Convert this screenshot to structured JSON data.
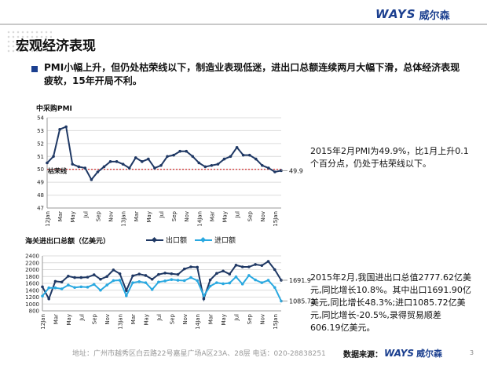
{
  "header": {
    "logo_text": "WAYS",
    "logo_cn": "威尔森"
  },
  "page": {
    "title": "宏观经济表现",
    "page_number": "3"
  },
  "summary": "PMI小幅上升，但仍处枯荣线以下，制造业表现低迷，进出口总额连续两月大幅下滑，总体经济表现疲软，15年开局不利。",
  "notes": {
    "pmi": "2015年2月PMI为49.9%，比1月上升0.1 个百分点，仍处于枯荣线以下。",
    "trade": "2015年2月,我国进出口总值2777.62亿美元,同比增长10.8%。其中出口1691.90亿美元,同比增长48.3%;进口1085.72亿美元,同比增长-20.5%,录得贸易顺差606.19亿美元。"
  },
  "footer": {
    "address": "地址：广州市越秀区白云路22号嘉星广场A区23A、28层   电话：020-28838251",
    "source_label": "数据来源：",
    "source_logo": "WAYS",
    "source_cn": "威尔森"
  },
  "chart_data": [
    {
      "type": "line",
      "title": "中采购PMI",
      "ylim": [
        47,
        54
      ],
      "yticks": [
        47,
        48,
        49,
        50,
        51,
        52,
        53,
        54
      ],
      "xticks": [
        "12Jan",
        "Mar",
        "May",
        "Jul",
        "Sep",
        "Nov",
        "13Jan",
        "Mar",
        "May",
        "Jul",
        "Sep",
        "Nov",
        "14Jan",
        "Mar",
        "May",
        "Jul",
        "Sep",
        "Nov",
        "15Jan"
      ],
      "reference_line": {
        "value": 50,
        "label": "枯荣线",
        "color": "#cc0000"
      },
      "end_label": "49.9",
      "grid": true,
      "series": [
        {
          "color": "#1f3864",
          "values": [
            50.5,
            51.0,
            53.1,
            53.3,
            50.4,
            50.2,
            50.1,
            49.2,
            49.8,
            50.2,
            50.6,
            50.6,
            50.4,
            50.1,
            50.9,
            50.6,
            50.8,
            50.1,
            50.3,
            51.0,
            51.1,
            51.4,
            51.4,
            51.0,
            50.5,
            50.2,
            50.3,
            50.4,
            50.8,
            51.0,
            51.7,
            51.1,
            51.1,
            50.8,
            50.3,
            50.1,
            49.8,
            49.9
          ]
        }
      ]
    },
    {
      "type": "line",
      "title": "海关进出口总额（亿美元）",
      "ylim": [
        800,
        2400
      ],
      "yticks": [
        800,
        1000,
        1200,
        1400,
        1600,
        1800,
        2000,
        2200,
        2400
      ],
      "xticks": [
        "12Jan",
        "Mar",
        "May",
        "Jul",
        "Sep",
        "Nov",
        "13Jan",
        "Mar",
        "May",
        "Jul",
        "Sep",
        "Nov",
        "14Jan",
        "Mar",
        "May",
        "Jul",
        "Sep",
        "Nov",
        "15Jan"
      ],
      "grid": true,
      "series": [
        {
          "name": "出口额",
          "color": "#1f3864",
          "end_label": "1691.9",
          "values": [
            1500,
            1150,
            1660,
            1640,
            1810,
            1770,
            1770,
            1780,
            1850,
            1720,
            1800,
            1990,
            1880,
            1390,
            1820,
            1870,
            1830,
            1720,
            1860,
            1900,
            1880,
            1860,
            2020,
            2080,
            2070,
            1150,
            1700,
            1890,
            1960,
            1870,
            2130,
            2080,
            2080,
            2150,
            2120,
            2240,
            2000,
            1691.9
          ]
        },
        {
          "name": "进口额",
          "color": "#29a8e0",
          "end_label": "1085.72",
          "values": [
            1230,
            1470,
            1470,
            1440,
            1550,
            1480,
            1500,
            1490,
            1570,
            1400,
            1550,
            1680,
            1690,
            1240,
            1620,
            1650,
            1620,
            1420,
            1640,
            1670,
            1710,
            1690,
            1680,
            1770,
            1680,
            1240,
            1520,
            1620,
            1590,
            1610,
            1790,
            1580,
            1830,
            1700,
            1620,
            1690,
            1480,
            1085.72
          ]
        }
      ]
    }
  ]
}
